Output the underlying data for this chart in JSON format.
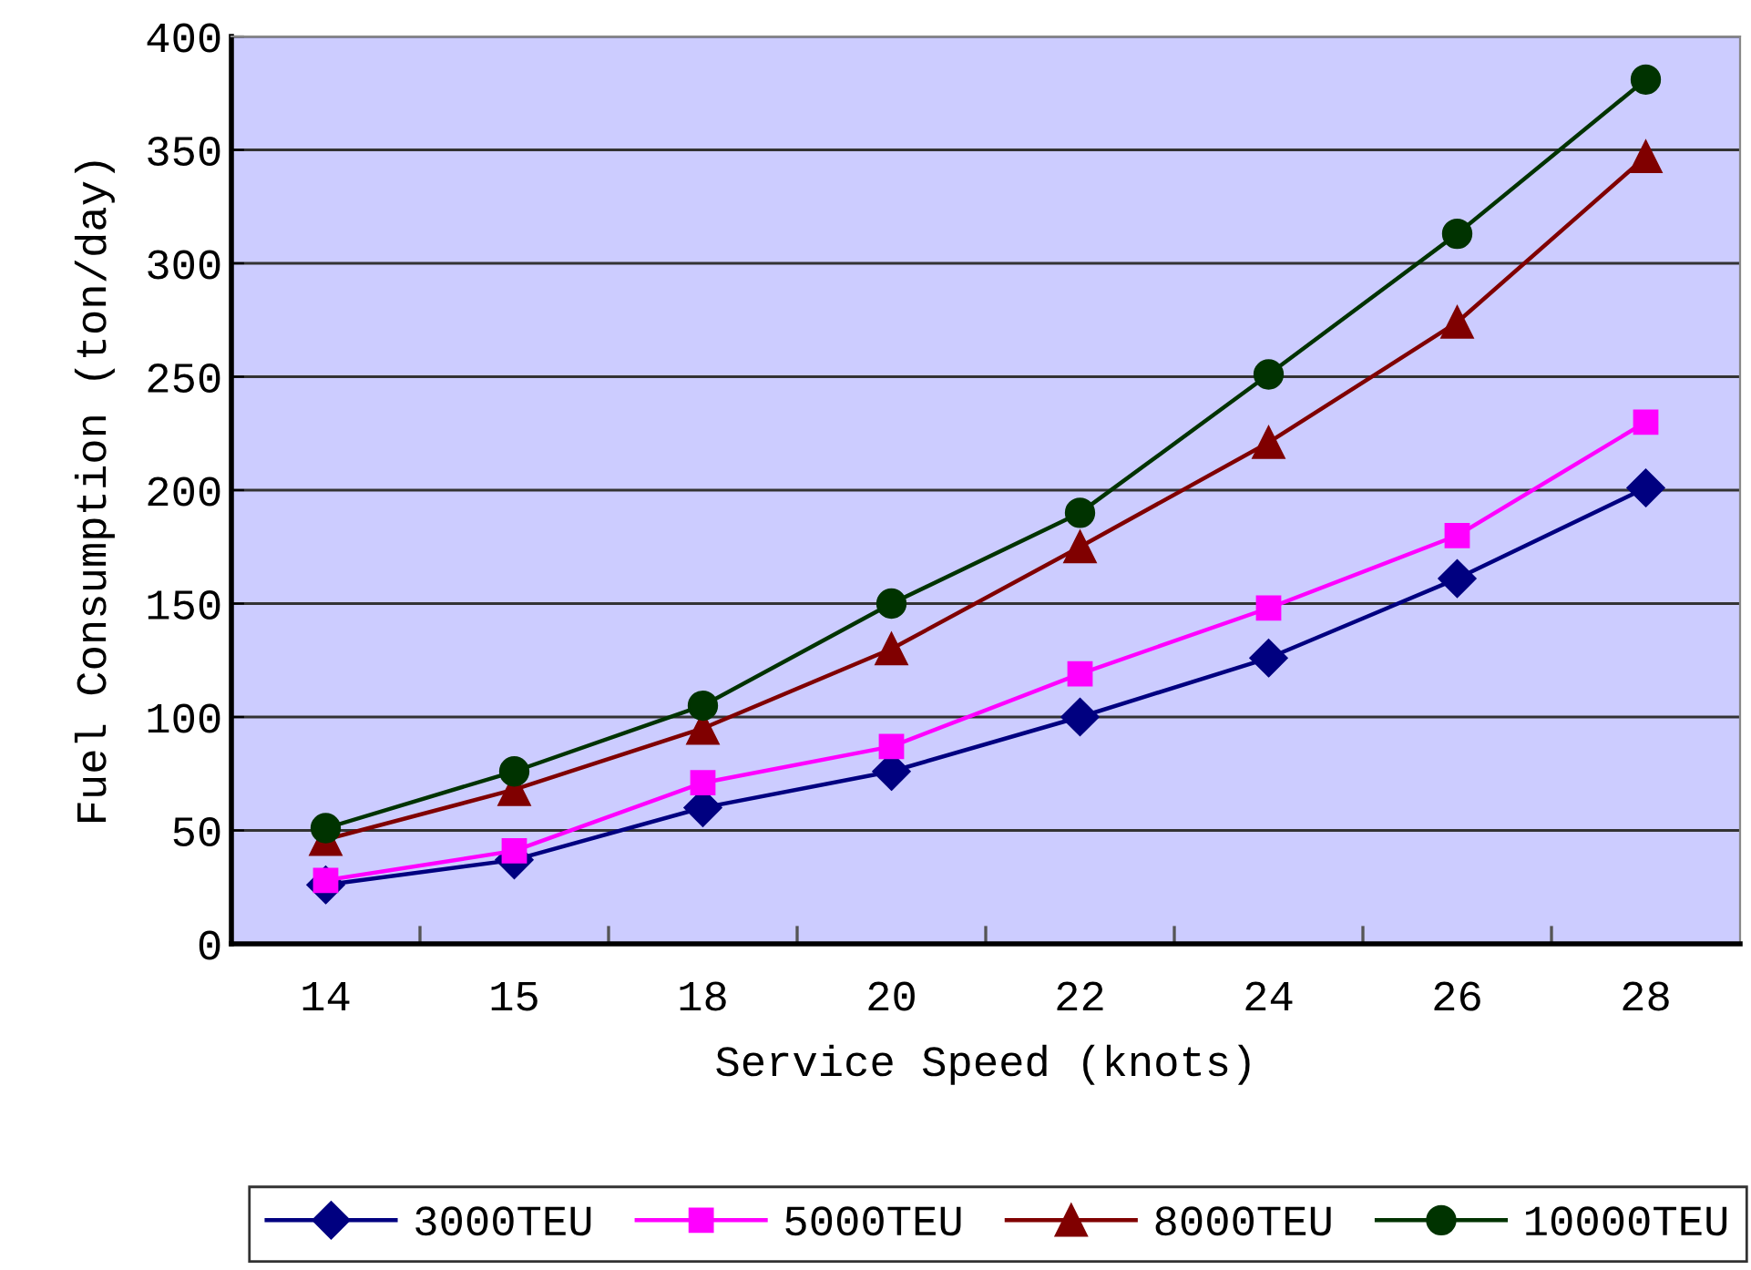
{
  "chart_data": {
    "type": "line",
    "xlabel": "Service Speed (knots)",
    "ylabel": "Fuel Consumption (ton/day)",
    "categories": [
      "14",
      "15",
      "18",
      "20",
      "22",
      "24",
      "26",
      "28"
    ],
    "series": [
      {
        "name": "3000TEU",
        "color": "#000080",
        "marker": "diamond",
        "values": [
          26,
          37,
          60,
          76,
          100,
          126,
          161,
          201
        ]
      },
      {
        "name": "5000TEU",
        "color": "#ff00ff",
        "marker": "square",
        "values": [
          28,
          41,
          71,
          87,
          119,
          148,
          180,
          230
        ]
      },
      {
        "name": "8000TEU",
        "color": "#800000",
        "marker": "triangle",
        "values": [
          46,
          68,
          95,
          130,
          175,
          221,
          274,
          347
        ]
      },
      {
        "name": "10000TEU",
        "color": "#003300",
        "marker": "circle",
        "values": [
          51,
          76,
          105,
          150,
          190,
          251,
          313,
          381
        ]
      }
    ],
    "ylim": [
      0,
      400
    ],
    "yticks": [
      0,
      50,
      100,
      150,
      200,
      250,
      300,
      350,
      400
    ],
    "grid": "y",
    "legend": "bottom",
    "line_style": "solid"
  }
}
